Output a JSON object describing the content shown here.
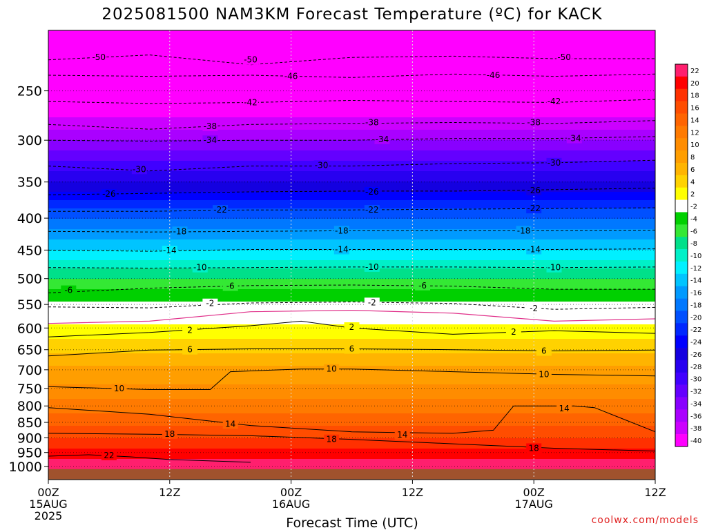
{
  "title": "2025081500 NAM3KM Forecast Temperature (ºC) for KACK",
  "xlabel": "Forecast Time (UTC)",
  "credit": "coolwx.com/models",
  "chart_data": {
    "type": "heatmap",
    "subtype": "time-pressure filled contour",
    "title": "2025081500 NAM3KM Forecast Temperature (ºC) for KACK",
    "xlabel": "Forecast Time (UTC)",
    "ylabel": "",
    "x_range_hours": [
      0,
      48
    ],
    "y_scale": "log-pressure, inverted",
    "y_range_hPa": [
      1050,
      200
    ],
    "yticks": [
      250,
      300,
      350,
      400,
      450,
      500,
      550,
      600,
      650,
      700,
      750,
      800,
      850,
      900,
      950,
      1000
    ],
    "xticks": [
      {
        "hour": 0,
        "lines": [
          "00Z",
          "15AUG",
          "2025"
        ]
      },
      {
        "hour": 12,
        "lines": [
          "12Z"
        ]
      },
      {
        "hour": 24,
        "lines": [
          "00Z",
          "16AUG"
        ]
      },
      {
        "hour": 36,
        "lines": [
          "12Z"
        ]
      },
      {
        "hour": 48,
        "lines": [
          "00Z",
          "17AUG"
        ]
      },
      {
        "hour": 60,
        "lines": [
          "12Z"
        ]
      }
    ],
    "x_max_hour": 60,
    "freezing_level_color": "#e0308a",
    "ground_color": "#a0522d",
    "colorbar": {
      "levels": [
        22,
        20,
        18,
        16,
        14,
        12,
        10,
        8,
        6,
        4,
        2,
        -2,
        -4,
        -6,
        -8,
        -10,
        -12,
        -14,
        -16,
        -18,
        -20,
        -22,
        -24,
        -26,
        -28,
        -30,
        -32,
        -34,
        -36,
        -38,
        -40
      ],
      "colors": [
        "#ff1f6e",
        "#ff0000",
        "#ff3000",
        "#ff4d00",
        "#ff6400",
        "#ff7a00",
        "#ff8c00",
        "#ff9e00",
        "#ffb400",
        "#ffd200",
        "#ffff00",
        "#ffffff",
        "#00d000",
        "#34e834",
        "#00e08a",
        "#00f0c8",
        "#00f0ff",
        "#00c4ff",
        "#009aff",
        "#0078ff",
        "#0050ff",
        "#0028ff",
        "#0000ff",
        "#1400e0",
        "#2800f0",
        "#4000ff",
        "#6400ff",
        "#8800ff",
        "#aa00ff",
        "#cc00ff",
        "#ff00ff"
      ]
    },
    "temperature_profile": [
      {
        "p": 1000,
        "t": 23
      },
      {
        "p": 950,
        "t": 21
      },
      {
        "p": 900,
        "t": 18
      },
      {
        "p": 850,
        "t": 15.5
      },
      {
        "p": 800,
        "t": 13
      },
      {
        "p": 750,
        "t": 10.5
      },
      {
        "p": 700,
        "t": 8.5
      },
      {
        "p": 650,
        "t": 5.5
      },
      {
        "p": 600,
        "t": 2.5
      },
      {
        "p": 550,
        "t": -1.5
      },
      {
        "p": 500,
        "t": -6
      },
      {
        "p": 450,
        "t": -12
      },
      {
        "p": 400,
        "t": -18
      },
      {
        "p": 350,
        "t": -26
      },
      {
        "p": 300,
        "t": -34
      },
      {
        "p": 250,
        "t": -43
      },
      {
        "p": 200,
        "t": -51
      }
    ],
    "contours": [
      {
        "t": -50,
        "style": "dashed",
        "points": [
          [
            0,
            223
          ],
          [
            10,
            219
          ],
          [
            20,
            227
          ],
          [
            30,
            221
          ],
          [
            40,
            220
          ],
          [
            50,
            222
          ],
          [
            60,
            222
          ]
        ],
        "labels": [
          [
            5,
            221
          ],
          [
            20,
            223
          ],
          [
            51,
            221
          ]
        ]
      },
      {
        "t": -46,
        "style": "dashed",
        "points": [
          [
            0,
            236
          ],
          [
            10,
            237
          ],
          [
            20,
            236
          ],
          [
            30,
            238
          ],
          [
            40,
            235
          ],
          [
            50,
            237
          ],
          [
            60,
            235
          ]
        ],
        "labels": [
          [
            24,
            237
          ],
          [
            44,
            236
          ]
        ]
      },
      {
        "t": -42,
        "style": "dashed",
        "points": [
          [
            0,
            260
          ],
          [
            10,
            262
          ],
          [
            20,
            261
          ],
          [
            30,
            259
          ],
          [
            40,
            260
          ],
          [
            50,
            261
          ],
          [
            60,
            258
          ]
        ],
        "labels": [
          [
            20,
            261
          ],
          [
            50,
            260
          ]
        ]
      },
      {
        "t": -38,
        "style": "dashed",
        "points": [
          [
            0,
            283
          ],
          [
            10,
            288
          ],
          [
            20,
            283
          ],
          [
            30,
            282
          ],
          [
            40,
            281
          ],
          [
            50,
            282
          ],
          [
            60,
            279
          ]
        ],
        "labels": [
          [
            16,
            285
          ],
          [
            32,
            281
          ],
          [
            48,
            281
          ]
        ]
      },
      {
        "t": -34,
        "style": "dashed",
        "points": [
          [
            0,
            300
          ],
          [
            10,
            301
          ],
          [
            20,
            300
          ],
          [
            30,
            300
          ],
          [
            40,
            298
          ],
          [
            50,
            298
          ],
          [
            60,
            296
          ]
        ],
        "labels": [
          [
            16,
            300
          ],
          [
            33,
            299
          ],
          [
            52,
            298
          ]
        ]
      },
      {
        "t": -30,
        "style": "dashed",
        "points": [
          [
            0,
            330
          ],
          [
            10,
            336
          ],
          [
            20,
            330
          ],
          [
            30,
            330
          ],
          [
            40,
            327
          ],
          [
            50,
            326
          ],
          [
            60,
            323
          ]
        ],
        "labels": [
          [
            9,
            334
          ],
          [
            27,
            329
          ],
          [
            50,
            326
          ]
        ]
      },
      {
        "t": -26,
        "style": "dashed",
        "points": [
          [
            0,
            367
          ],
          [
            10,
            365
          ],
          [
            20,
            363
          ],
          [
            30,
            362
          ],
          [
            40,
            362
          ],
          [
            50,
            360
          ],
          [
            60,
            358
          ]
        ],
        "labels": [
          [
            6,
            366
          ],
          [
            32,
            363
          ],
          [
            48,
            361
          ]
        ]
      },
      {
        "t": -22,
        "style": "dashed",
        "points": [
          [
            0,
            390
          ],
          [
            10,
            390
          ],
          [
            20,
            388
          ],
          [
            30,
            388
          ],
          [
            40,
            387
          ],
          [
            50,
            386
          ],
          [
            60,
            385
          ]
        ],
        "labels": [
          [
            17,
            388
          ],
          [
            32,
            388
          ],
          [
            48,
            386
          ]
        ]
      },
      {
        "t": -18,
        "style": "dashed",
        "points": [
          [
            0,
            420
          ],
          [
            10,
            421
          ],
          [
            20,
            420
          ],
          [
            30,
            419
          ],
          [
            40,
            419
          ],
          [
            50,
            419
          ],
          [
            60,
            418
          ]
        ],
        "labels": [
          [
            13,
            420
          ],
          [
            29,
            419
          ],
          [
            47,
            419
          ]
        ]
      },
      {
        "t": -14,
        "style": "dashed",
        "points": [
          [
            0,
            450
          ],
          [
            10,
            452
          ],
          [
            20,
            449
          ],
          [
            30,
            449
          ],
          [
            40,
            449
          ],
          [
            50,
            449
          ],
          [
            60,
            448
          ]
        ],
        "labels": [
          [
            12,
            451
          ],
          [
            29,
            449
          ],
          [
            48,
            449
          ]
        ]
      },
      {
        "t": -10,
        "style": "dashed",
        "points": [
          [
            0,
            480
          ],
          [
            10,
            481
          ],
          [
            20,
            480
          ],
          [
            30,
            479
          ],
          [
            40,
            479
          ],
          [
            50,
            480
          ],
          [
            60,
            479
          ]
        ],
        "labels": [
          [
            15,
            480
          ],
          [
            32,
            479
          ],
          [
            50,
            480
          ]
        ]
      },
      {
        "t": -6,
        "style": "dashed",
        "points": [
          [
            0,
            527
          ],
          [
            10,
            518
          ],
          [
            20,
            513
          ],
          [
            30,
            512
          ],
          [
            40,
            514
          ],
          [
            50,
            520
          ],
          [
            60,
            520
          ]
        ],
        "labels": [
          [
            2,
            522
          ],
          [
            18,
            514
          ],
          [
            37,
            513
          ]
        ]
      },
      {
        "t": -2,
        "style": "dashed",
        "points": [
          [
            0,
            555
          ],
          [
            10,
            557
          ],
          [
            20,
            547
          ],
          [
            30,
            545
          ],
          [
            40,
            548
          ],
          [
            50,
            560
          ],
          [
            60,
            556
          ]
        ],
        "labels": [
          [
            16,
            548
          ],
          [
            32,
            546
          ],
          [
            48,
            558
          ]
        ]
      },
      {
        "t": 2,
        "style": "solid",
        "points": [
          [
            0,
            620
          ],
          [
            10,
            610
          ],
          [
            20,
            595
          ],
          [
            25,
            585
          ],
          [
            30,
            600
          ],
          [
            40,
            614
          ],
          [
            50,
            606
          ],
          [
            60,
            612
          ]
        ],
        "labels": [
          [
            14,
            605
          ],
          [
            30,
            598
          ],
          [
            46,
            609
          ]
        ]
      },
      {
        "t": 6,
        "style": "solid",
        "points": [
          [
            0,
            665
          ],
          [
            10,
            651
          ],
          [
            20,
            648
          ],
          [
            30,
            648
          ],
          [
            40,
            650
          ],
          [
            50,
            653
          ],
          [
            60,
            651
          ]
        ],
        "labels": [
          [
            14,
            650
          ],
          [
            30,
            648
          ],
          [
            49,
            653
          ]
        ]
      },
      {
        "t": 10,
        "style": "solid",
        "points": [
          [
            0,
            745
          ],
          [
            10,
            753
          ],
          [
            16,
            753
          ],
          [
            18,
            705
          ],
          [
            25,
            698
          ],
          [
            30,
            698
          ],
          [
            40,
            705
          ],
          [
            50,
            712
          ],
          [
            60,
            716
          ]
        ],
        "labels": [
          [
            7,
            750
          ],
          [
            28,
            698
          ],
          [
            49,
            712
          ]
        ]
      },
      {
        "t": 14,
        "style": "solid",
        "points": [
          [
            0,
            805
          ],
          [
            10,
            825
          ],
          [
            20,
            860
          ],
          [
            30,
            880
          ],
          [
            40,
            885
          ],
          [
            44,
            875
          ],
          [
            46,
            800
          ],
          [
            52,
            800
          ],
          [
            54,
            805
          ],
          [
            60,
            880
          ]
        ],
        "labels": [
          [
            18,
            855
          ],
          [
            35,
            890
          ],
          [
            51,
            808
          ]
        ]
      },
      {
        "t": 18,
        "style": "solid",
        "points": [
          [
            0,
            885
          ],
          [
            10,
            888
          ],
          [
            20,
            893
          ],
          [
            30,
            905
          ],
          [
            40,
            920
          ],
          [
            50,
            935
          ],
          [
            60,
            945
          ]
        ],
        "labels": [
          [
            12,
            887
          ],
          [
            28,
            905
          ],
          [
            48,
            935
          ]
        ]
      },
      {
        "t": 22,
        "style": "solid",
        "points": [
          [
            0,
            963
          ],
          [
            4,
            958
          ],
          [
            8,
            965
          ],
          [
            12,
            975
          ],
          [
            20,
            985
          ]
        ],
        "labels": [
          [
            6,
            960
          ]
        ]
      }
    ]
  }
}
